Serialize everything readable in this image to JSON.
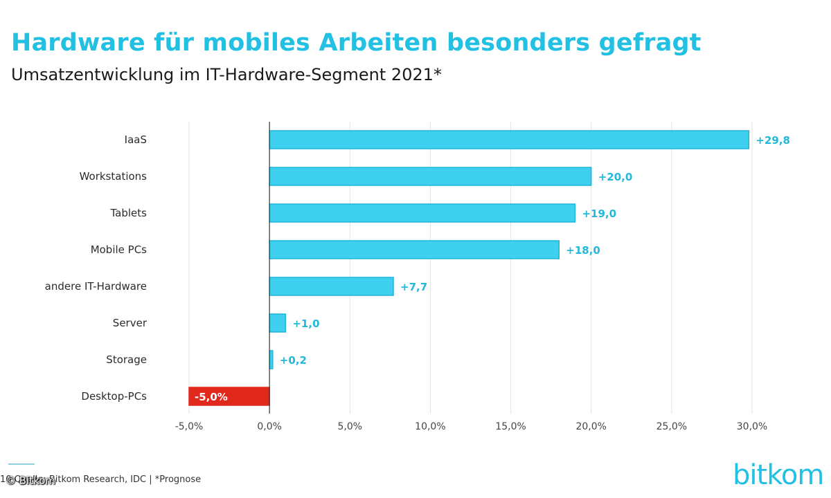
{
  "header": {
    "title": "Hardware für mobiles Arbeiten besonders gefragt",
    "subtitle": "Umsatzentwicklung im IT-Hardware-Segment 2021*"
  },
  "chart_data": {
    "type": "bar",
    "orientation": "horizontal",
    "categories": [
      "IaaS",
      "Workstations",
      "Tablets",
      "Mobile PCs",
      "andere IT-Hardware",
      "Server",
      "Storage",
      "Desktop-PCs"
    ],
    "values": [
      29.8,
      20.0,
      19.0,
      18.0,
      7.7,
      1.0,
      0.2,
      -5.0
    ],
    "value_labels": [
      "+29,8",
      "+20,0",
      "+19,0",
      "+18,0",
      "+7,7",
      "+1,0",
      "+0,2",
      "-5,0%"
    ],
    "xlim": [
      -5,
      30
    ],
    "xticks": [
      -5,
      0,
      5,
      10,
      15,
      20,
      25,
      30
    ],
    "xtick_labels": [
      "-5,0%",
      "0,0%",
      "5,0%",
      "10,0%",
      "15,0%",
      "20,0%",
      "25,0%",
      "30,0%"
    ],
    "grid": true,
    "colors": {
      "positive": "#3fd0f0",
      "positive_edge": "#1fb5d8",
      "negative": "#e0281c",
      "grid": "#e3e3e3",
      "axis": "#333333"
    }
  },
  "footer": {
    "source": "10   Quelle: Bitkom Research, IDC | *Prognose",
    "copyright": "© Bitkom",
    "logo": "bitkom"
  }
}
